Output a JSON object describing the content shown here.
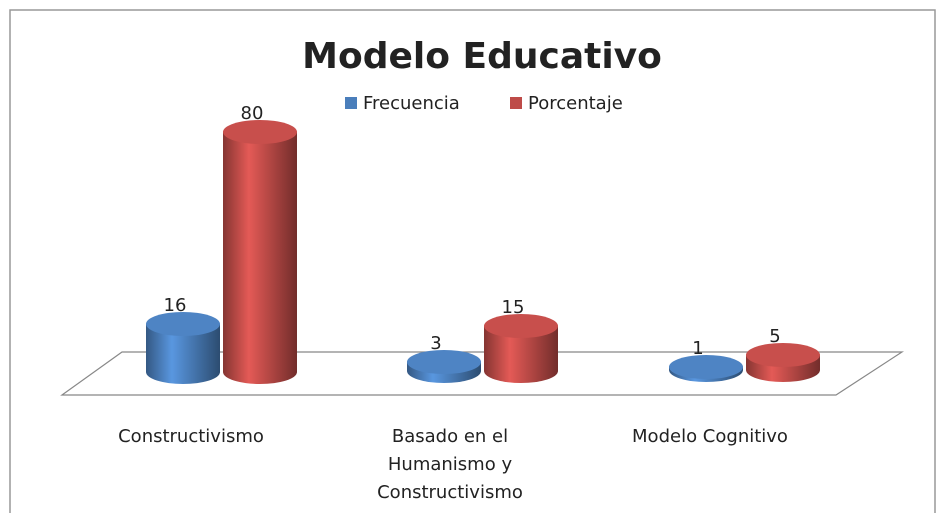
{
  "chart_data": {
    "type": "bar3d",
    "title": "Modelo Educativo",
    "categories": [
      "Constructivismo",
      "Basado en el Humanismo y Constructivismo",
      "Modelo Cognitivo"
    ],
    "series": [
      {
        "name": "Frecuencia",
        "color": "#4a7ebb",
        "values": [
          16,
          3,
          1
        ]
      },
      {
        "name": "Porcentaje",
        "color": "#be4b48",
        "values": [
          80,
          15,
          5
        ]
      }
    ],
    "legend": "top"
  }
}
